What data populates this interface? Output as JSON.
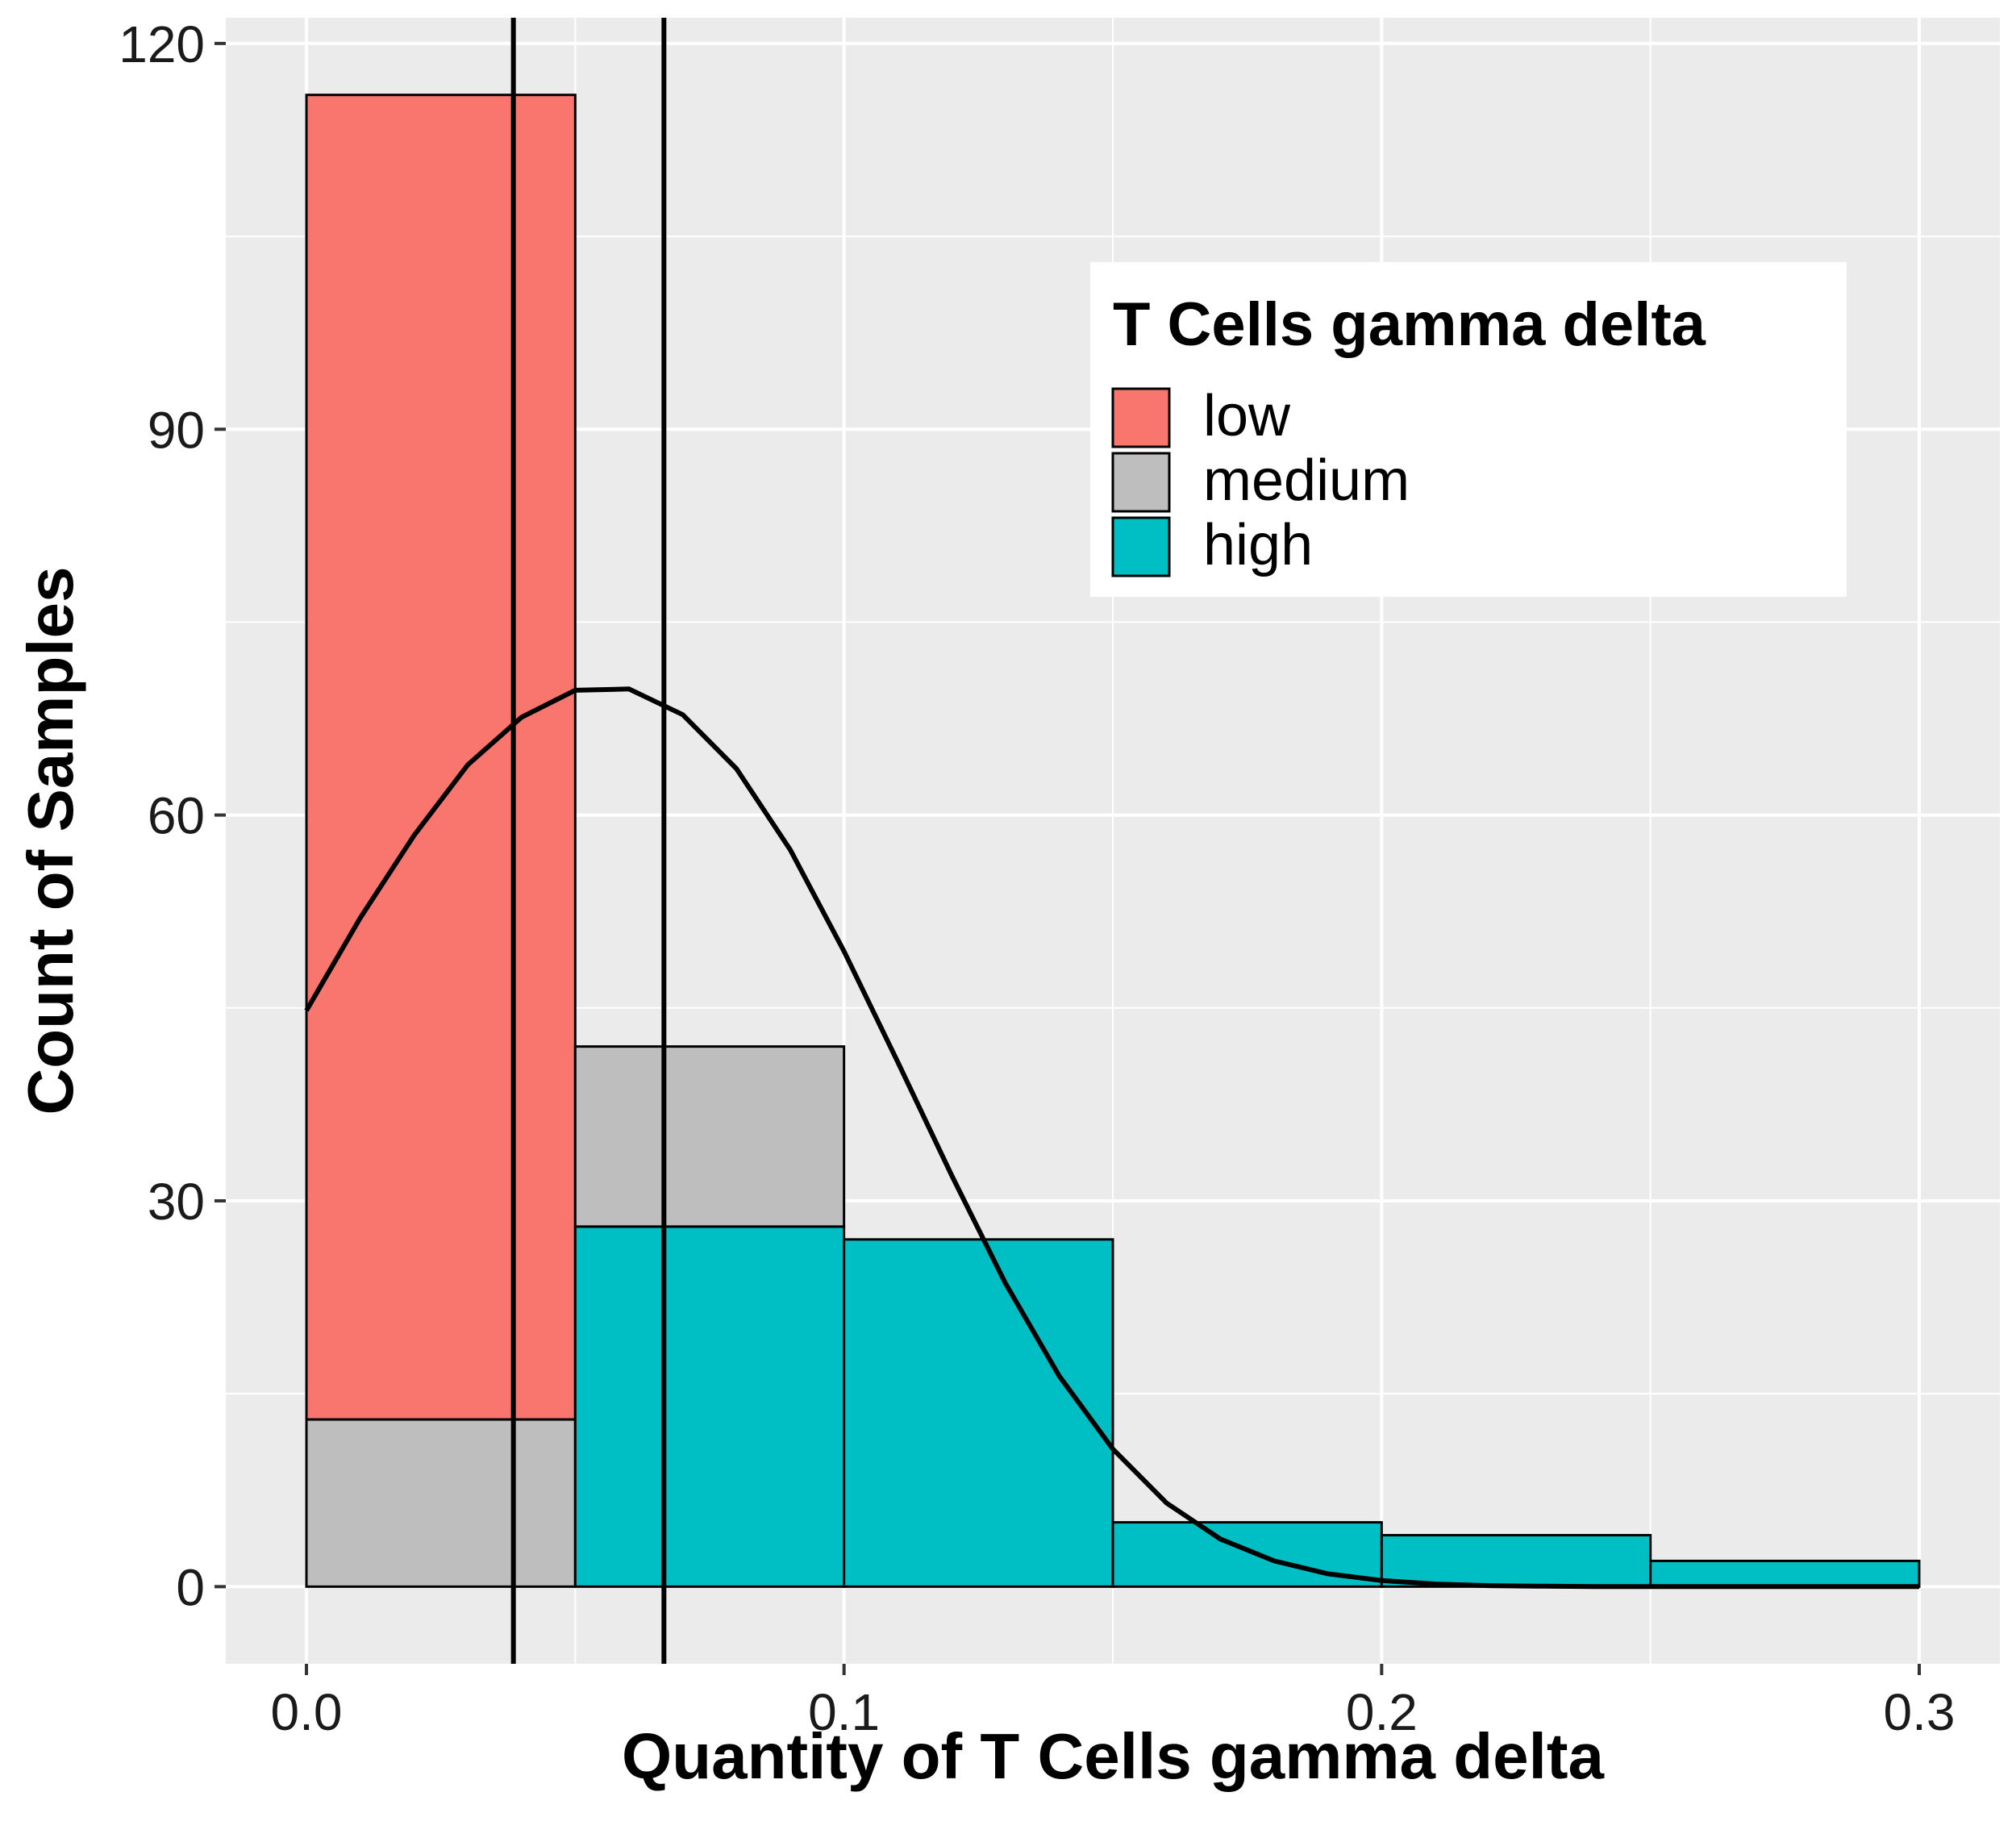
{
  "chart_data": {
    "type": "bar",
    "subtype": "stacked-histogram",
    "xlabel": "Quantity of T Cells gamma delta",
    "ylabel": "Count of Samples",
    "xlim": [
      -0.015,
      0.315
    ],
    "ylim": [
      -6,
      122
    ],
    "x_ticks": [
      0.0,
      0.1,
      0.2,
      0.3
    ],
    "x_tick_labels": [
      "0.0",
      "0.1",
      "0.2",
      "0.3"
    ],
    "y_ticks": [
      0,
      30,
      60,
      90,
      120
    ],
    "y_tick_labels": [
      "0",
      "30",
      "60",
      "90",
      "120"
    ],
    "grid": true,
    "bin_edges": [
      0.0,
      0.05,
      0.1,
      0.15,
      0.2,
      0.25,
      0.3
    ],
    "series": [
      {
        "name": "high",
        "color": "#00BFC4",
        "values": [
          0,
          28,
          27,
          5,
          4,
          2
        ]
      },
      {
        "name": "medium",
        "color": "#BEBEBE",
        "values": [
          13,
          14,
          0,
          0,
          0,
          0
        ]
      },
      {
        "name": "low",
        "color": "#F8766D",
        "values": [
          103,
          0,
          0,
          0,
          0,
          0
        ]
      }
    ],
    "vertical_lines": [
      0.0385,
      0.0665
    ],
    "density_curve": {
      "x": [
        0.0,
        0.01,
        0.02,
        0.03,
        0.04,
        0.05,
        0.06,
        0.07,
        0.08,
        0.09,
        0.1,
        0.11,
        0.12,
        0.13,
        0.14,
        0.15,
        0.16,
        0.17,
        0.18,
        0.19,
        0.2,
        0.21,
        0.22,
        0.23,
        0.24,
        0.25,
        0.26,
        0.27,
        0.28,
        0.29,
        0.3
      ],
      "y": [
        44.8,
        52.0,
        58.4,
        63.9,
        67.6,
        69.7,
        69.8,
        67.8,
        63.6,
        57.3,
        49.4,
        40.8,
        32.0,
        23.6,
        16.4,
        10.7,
        6.5,
        3.7,
        2.0,
        1.0,
        0.48,
        0.2,
        0.08,
        0.03,
        0.01,
        0.0,
        0.0,
        0.0,
        0.0,
        0.0,
        0.0
      ]
    },
    "legend": {
      "title": "T Cells gamma delta",
      "placement": "top-right",
      "items": [
        {
          "label": "low",
          "color": "#F8766D"
        },
        {
          "label": "medium",
          "color": "#BEBEBE"
        },
        {
          "label": "high",
          "color": "#00BFC4"
        }
      ]
    },
    "colors": {
      "panel_background": "#EBEBEB",
      "gridline": "#FFFFFF",
      "bar_outline": "#000000",
      "line": "#000000"
    }
  }
}
